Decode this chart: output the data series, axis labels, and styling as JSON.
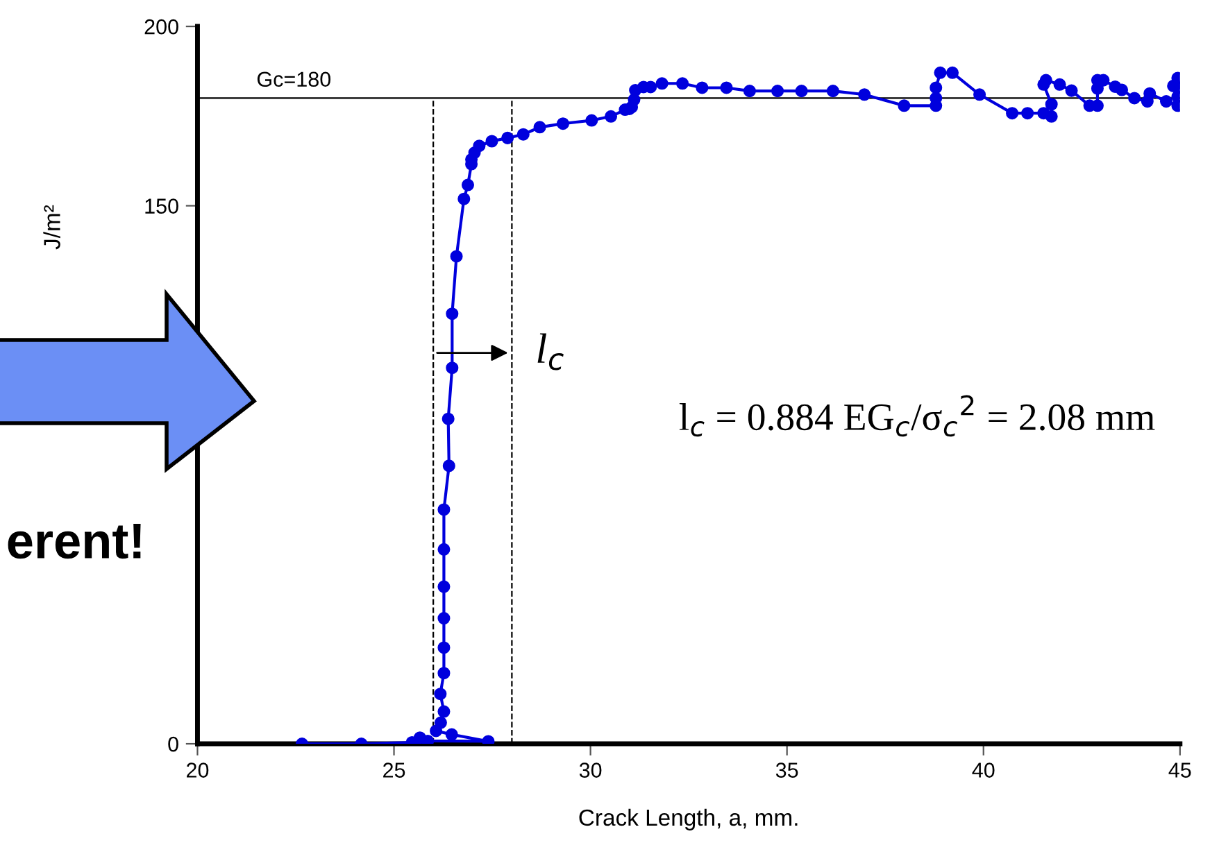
{
  "chart_data": {
    "type": "line",
    "xlabel": "Crack Length, a, mm.",
    "ylabel": "J/m²",
    "xlim": [
      20,
      45
    ],
    "xticks": [
      20,
      25,
      30,
      35,
      40,
      45
    ],
    "ylim": [
      0,
      200
    ],
    "yticks": [
      0,
      150,
      200
    ],
    "grid": false,
    "marker": "circle",
    "line_style": "solid",
    "ref_lines": [
      {
        "axis": "y",
        "value": 180,
        "label": "Gc=180",
        "color": "#000000",
        "line_style": "solid"
      },
      {
        "axis": "x",
        "value": 26,
        "label": null,
        "color": "#000000",
        "line_style": "dashed"
      },
      {
        "axis": "x",
        "value": 28,
        "label": null,
        "color": "#000000",
        "line_style": "dashed"
      }
    ],
    "annotations": [
      {
        "text": "l$_{c}$",
        "x": 28,
        "y": 109
      },
      "l$_{c}$ = 0.884 EG$_{c}$/σ$_{c}$$^{2}$ = 2.08 mm",
      "erent!"
    ],
    "series": [
      {
        "color": "#0000dd",
        "x": [
          22.66,
          24.17,
          25.46,
          25.66,
          25.86,
          27.4,
          26.47,
          26.07,
          26.19,
          26.27,
          26.18,
          26.27,
          26.27,
          26.27,
          26.27,
          26.27,
          26.27,
          26.4,
          26.38,
          26.48,
          26.48,
          26.59,
          26.78,
          26.88,
          26.97,
          26.97,
          27.05,
          27.17,
          27.49,
          27.89,
          28.29,
          28.71,
          29.3,
          30.03,
          30.52,
          30.88,
          30.99,
          31.05,
          31.11,
          31.14,
          31.35,
          31.53,
          31.82,
          32.34,
          32.84,
          33.46,
          34.05,
          34.76,
          35.37,
          36.17,
          36.97,
          37.98,
          38.79,
          38.79,
          38.79,
          38.9,
          39.21,
          39.9,
          40.73,
          41.12,
          41.53,
          41.73,
          41.73,
          41.53,
          41.59,
          41.94,
          42.24,
          42.7,
          42.9,
          42.9,
          42.9,
          43.05,
          43.35,
          43.52,
          43.84,
          44.17,
          44.23,
          44.65,
          44.94,
          44.94,
          44.83,
          44.94,
          45.0
        ],
        "values": [
          0,
          0,
          0.4,
          1.7,
          0.8,
          0.7,
          2.6,
          3.6,
          5.9,
          9.0,
          13.9,
          19.7,
          26.8,
          35.0,
          43.8,
          54.2,
          65.3,
          77.5,
          90.6,
          104.8,
          119.9,
          135.9,
          151.9,
          155.8,
          161.6,
          162.9,
          164.8,
          166.7,
          168.0,
          168.9,
          169.9,
          171.9,
          172.9,
          173.8,
          174.9,
          176.8,
          177.0,
          177.5,
          179.6,
          182.2,
          183.1,
          183.1,
          184.1,
          184.1,
          182.9,
          182.9,
          182.0,
          182.0,
          182.0,
          182.0,
          181.0,
          177.9,
          177.9,
          180.0,
          182.9,
          187.1,
          187.1,
          181.0,
          175.8,
          175.8,
          175.8,
          174.9,
          178.3,
          183.8,
          185.0,
          183.8,
          182.1,
          177.9,
          177.9,
          182.7,
          185.0,
          185.0,
          183.2,
          182.3,
          180.0,
          179.1,
          181.3,
          179.1,
          177.9,
          180.4,
          183.4,
          185.6,
          182.9
        ]
      }
    ]
  }
}
